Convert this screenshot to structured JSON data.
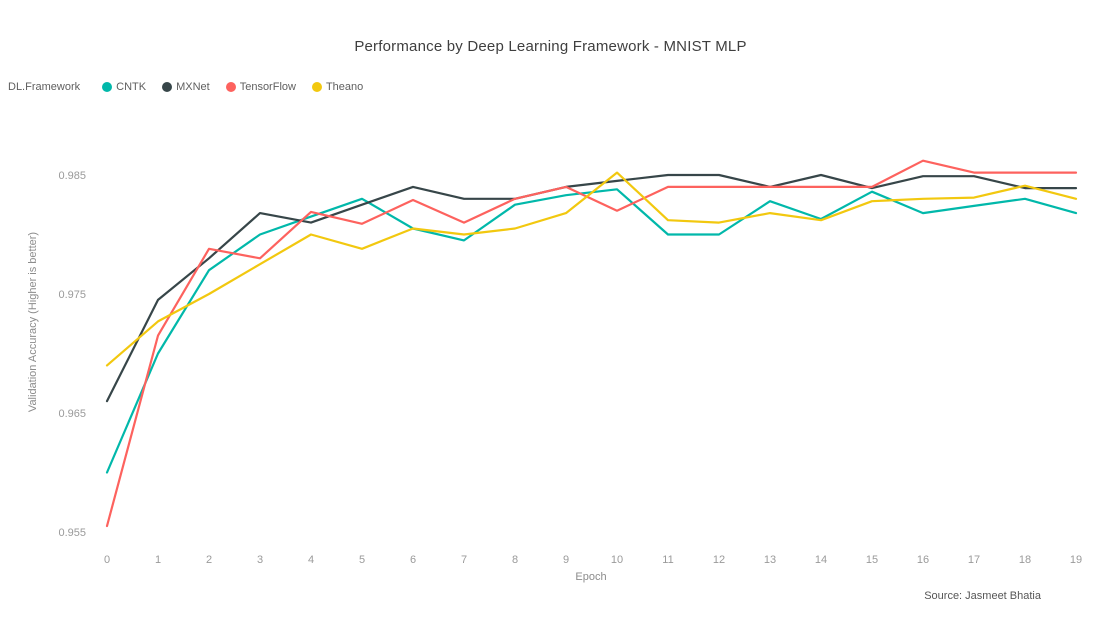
{
  "header": {
    "title": "Performance by Deep Learning Framework - MNIST MLP"
  },
  "legend": {
    "title": "DL.Framework",
    "items": [
      {
        "label": "CNTK",
        "color": "#01B8AA"
      },
      {
        "label": "MXNet",
        "color": "#374649"
      },
      {
        "label": "TensorFlow",
        "color": "#FD625E"
      },
      {
        "label": "Theano",
        "color": "#F2C80F"
      }
    ]
  },
  "chart_data": {
    "type": "line",
    "title": "Performance by Deep Learning Framework - MNIST MLP",
    "xlabel": "Epoch",
    "ylabel": "Validation Accuracy (Higher is better)",
    "x": [
      0,
      1,
      2,
      3,
      4,
      5,
      6,
      7,
      8,
      9,
      10,
      11,
      12,
      13,
      14,
      15,
      16,
      17,
      18,
      19
    ],
    "x_ticks": [
      "0",
      "1",
      "2",
      "3",
      "4",
      "5",
      "6",
      "7",
      "8",
      "9",
      "10",
      "11",
      "12",
      "13",
      "14",
      "15",
      "16",
      "17",
      "18",
      "19"
    ],
    "y_ticks": [
      "0.985",
      "0.975",
      "0.965",
      "0.955"
    ],
    "ylim": [
      0.9535,
      0.9875
    ],
    "grid": false,
    "legend_position": "top-left",
    "series": [
      {
        "name": "CNTK",
        "color": "#01B8AA",
        "values": [
          0.96,
          0.97,
          0.977,
          0.98,
          0.9815,
          0.983,
          0.9805,
          0.9795,
          0.9825,
          0.9833,
          0.9838,
          0.98,
          0.98,
          0.9828,
          0.9813,
          0.9836,
          0.9818,
          0.9824,
          0.983,
          0.9818
        ]
      },
      {
        "name": "MXNet",
        "color": "#374649",
        "values": [
          0.966,
          0.9745,
          0.978,
          0.9818,
          0.981,
          0.9825,
          0.984,
          0.983,
          0.983,
          0.984,
          0.9845,
          0.985,
          0.985,
          0.984,
          0.985,
          0.9839,
          0.9849,
          0.9849,
          0.9839,
          0.9839
        ]
      },
      {
        "name": "TensorFlow",
        "color": "#FD625E",
        "values": [
          0.9555,
          0.9715,
          0.9788,
          0.978,
          0.9819,
          0.9809,
          0.9829,
          0.981,
          0.983,
          0.984,
          0.982,
          0.984,
          0.984,
          0.984,
          0.984,
          0.984,
          0.9862,
          0.9852,
          0.9852,
          0.9852
        ]
      },
      {
        "name": "Theano",
        "color": "#F2C80F",
        "values": [
          0.969,
          0.9727,
          0.975,
          0.9775,
          0.98,
          0.9788,
          0.9805,
          0.98,
          0.9805,
          0.9818,
          0.9852,
          0.9812,
          0.981,
          0.9818,
          0.9812,
          0.9828,
          0.983,
          0.9831,
          0.9841,
          0.983
        ]
      }
    ]
  },
  "footer": {
    "source": "Source: Jasmeet Bhatia"
  }
}
